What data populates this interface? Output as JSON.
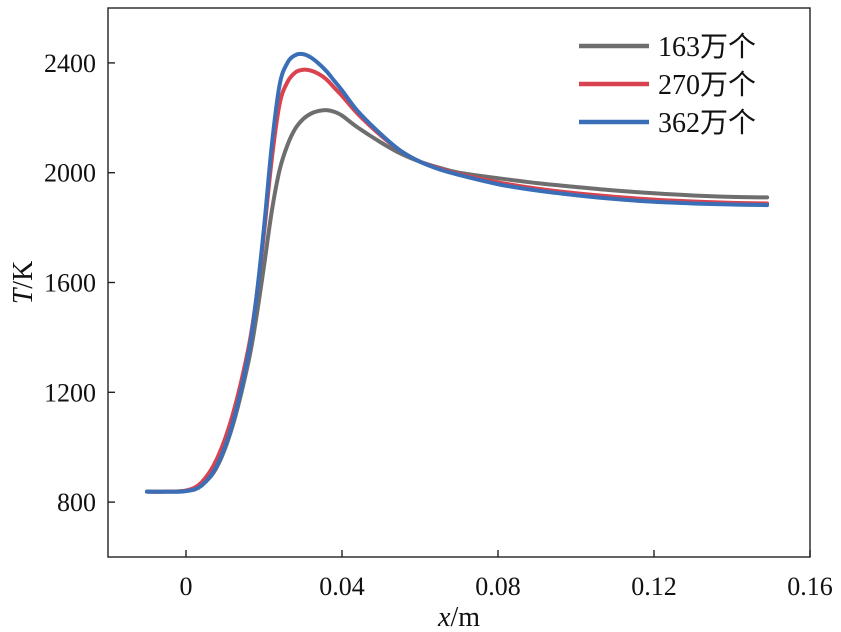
{
  "chart_data": {
    "type": "line",
    "xlabel": {
      "var": "x",
      "unit": "/m"
    },
    "ylabel": {
      "var": "T",
      "unit": "/K"
    },
    "xlim": [
      -0.02,
      0.16
    ],
    "ylim": [
      600,
      2600
    ],
    "xticks": [
      0,
      0.04,
      0.08,
      0.12,
      0.16
    ],
    "xtick_labels": [
      "0",
      "0.04",
      "0.08",
      "0.12",
      "0.16"
    ],
    "yticks": [
      800,
      1200,
      1600,
      2000,
      2400
    ],
    "ytick_labels": [
      "800",
      "1200",
      "1600",
      "2000",
      "2400"
    ],
    "grid": false,
    "legend_position": "top-right",
    "series": [
      {
        "name": "163万个",
        "color": "#6e6e6e",
        "x": [
          -0.01,
          -0.005,
          0,
          0.004,
          0.008,
          0.012,
          0.016,
          0.018,
          0.02,
          0.022,
          0.024,
          0.026,
          0.028,
          0.03,
          0.032,
          0.034,
          0.036,
          0.038,
          0.04,
          0.044,
          0.05,
          0.055,
          0.06,
          0.065,
          0.07,
          0.08,
          0.09,
          0.1,
          0.11,
          0.12,
          0.13,
          0.14,
          0.149
        ],
        "y": [
          838,
          838,
          842,
          862,
          930,
          1080,
          1310,
          1470,
          1660,
          1860,
          2010,
          2100,
          2160,
          2195,
          2215,
          2225,
          2228,
          2222,
          2208,
          2165,
          2110,
          2070,
          2040,
          2018,
          2000,
          1980,
          1962,
          1948,
          1935,
          1925,
          1917,
          1912,
          1910
        ]
      },
      {
        "name": "270万个",
        "color": "#d9434f",
        "x": [
          -0.01,
          -0.005,
          0,
          0.004,
          0.008,
          0.012,
          0.016,
          0.018,
          0.02,
          0.022,
          0.024,
          0.026,
          0.028,
          0.03,
          0.032,
          0.034,
          0.036,
          0.038,
          0.04,
          0.044,
          0.05,
          0.055,
          0.06,
          0.065,
          0.07,
          0.08,
          0.09,
          0.1,
          0.11,
          0.12,
          0.13,
          0.14,
          0.149
        ],
        "y": [
          838,
          838,
          842,
          872,
          960,
          1120,
          1360,
          1540,
          1780,
          2050,
          2250,
          2330,
          2365,
          2375,
          2372,
          2360,
          2340,
          2310,
          2280,
          2215,
          2135,
          2080,
          2040,
          2015,
          1995,
          1965,
          1942,
          1925,
          1912,
          1902,
          1895,
          1890,
          1888
        ]
      },
      {
        "name": "362万个",
        "color": "#3a6fb7",
        "x": [
          -0.01,
          -0.005,
          0,
          0.004,
          0.008,
          0.012,
          0.016,
          0.018,
          0.02,
          0.022,
          0.024,
          0.026,
          0.028,
          0.03,
          0.032,
          0.034,
          0.036,
          0.038,
          0.04,
          0.044,
          0.05,
          0.055,
          0.06,
          0.065,
          0.07,
          0.08,
          0.09,
          0.1,
          0.11,
          0.12,
          0.13,
          0.14,
          0.149
        ],
        "y": [
          838,
          838,
          840,
          860,
          935,
          1090,
          1340,
          1540,
          1800,
          2100,
          2320,
          2400,
          2428,
          2432,
          2420,
          2398,
          2370,
          2335,
          2300,
          2225,
          2140,
          2080,
          2040,
          2012,
          1992,
          1958,
          1935,
          1918,
          1904,
          1894,
          1888,
          1884,
          1882
        ]
      }
    ]
  }
}
